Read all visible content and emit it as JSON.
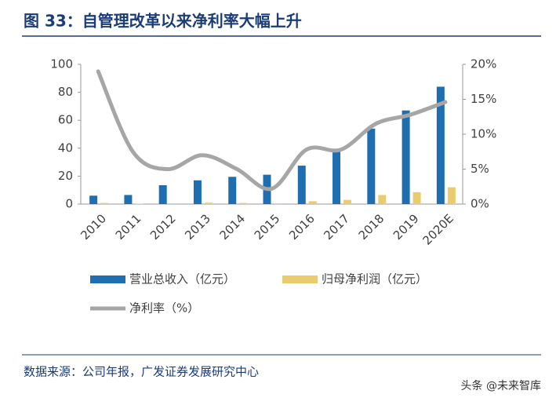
{
  "header": {
    "title": "图 33：自管理改革以来净利率大幅上升"
  },
  "chart_data": {
    "type": "bar-line",
    "categories": [
      "2010",
      "2011",
      "2012",
      "2013",
      "2014",
      "2015",
      "2016",
      "2017",
      "2018",
      "2019",
      "2020E"
    ],
    "series": [
      {
        "name": "营业总收入（亿元）",
        "color": "#1f6eb0",
        "type": "bar",
        "values": [
          6,
          6.5,
          13.5,
          17,
          19.5,
          21,
          27.5,
          38,
          54,
          67,
          84
        ]
      },
      {
        "name": "归母净利润（亿元）",
        "color": "#e8cc6e",
        "type": "bar",
        "values": [
          0.8,
          0.3,
          0.5,
          1,
          0.8,
          0.5,
          2,
          3,
          6.5,
          8.5,
          12
        ]
      },
      {
        "name": "净利率（%）",
        "color": "#a6a6a6",
        "type": "line",
        "axis": "y2",
        "values": [
          19,
          7.5,
          5,
          7,
          5,
          2.2,
          7.8,
          7.8,
          11.5,
          12.8,
          14.6
        ]
      }
    ],
    "ylim": [
      0,
      100
    ],
    "yticks": [
      0,
      20,
      40,
      60,
      80,
      100
    ],
    "y2lim": [
      0,
      20
    ],
    "y2ticks": [
      {
        "value": 0,
        "label": "0%"
      },
      {
        "value": 5,
        "label": "5%"
      },
      {
        "value": 10,
        "label": "10%"
      },
      {
        "value": 15,
        "label": "15%"
      },
      {
        "value": 20,
        "label": "20%"
      }
    ]
  },
  "footer": {
    "source": "数据来源：公司年报，广发证券发展研究中心",
    "watermark": "头条 @未来智库"
  }
}
